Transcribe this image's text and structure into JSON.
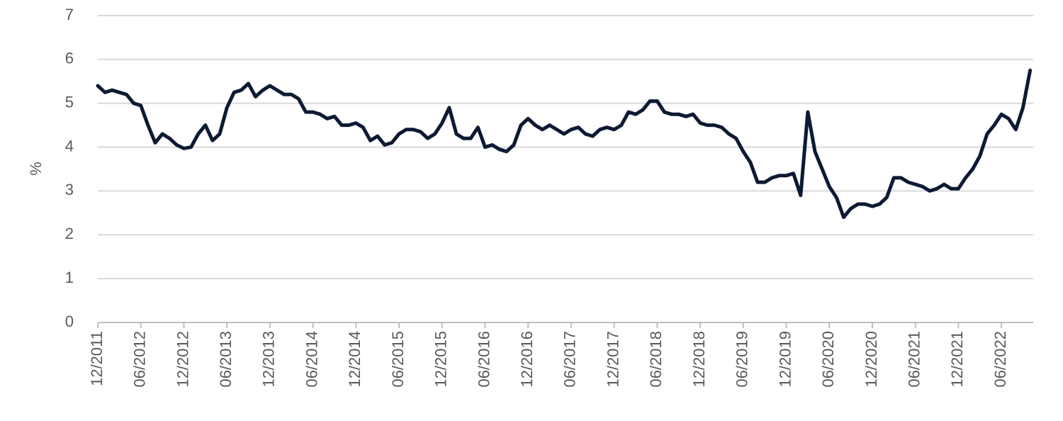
{
  "chart_data": {
    "type": "line",
    "y_label": "%",
    "color": "#0d1a33",
    "grid": true,
    "ylim": [
      0,
      7
    ],
    "yticks": [
      0,
      1,
      2,
      3,
      4,
      5,
      6,
      7
    ],
    "categories": [
      "12/2011",
      null,
      null,
      null,
      null,
      null,
      "06/2012",
      null,
      null,
      null,
      null,
      null,
      "12/2012",
      null,
      null,
      null,
      null,
      null,
      "06/2013",
      null,
      null,
      null,
      null,
      null,
      "12/2013",
      null,
      null,
      null,
      null,
      null,
      "06/2014",
      null,
      null,
      null,
      null,
      null,
      "12/2014",
      null,
      null,
      null,
      null,
      null,
      "06/2015",
      null,
      null,
      null,
      null,
      null,
      "12/2015",
      null,
      null,
      null,
      null,
      null,
      "06/2016",
      null,
      null,
      null,
      null,
      null,
      "12/2016",
      null,
      null,
      null,
      null,
      null,
      "06/2017",
      null,
      null,
      null,
      null,
      null,
      "12/2017",
      null,
      null,
      null,
      null,
      null,
      "06/2018",
      null,
      null,
      null,
      null,
      null,
      "12/2018",
      null,
      null,
      null,
      null,
      null,
      "06/2019",
      null,
      null,
      null,
      null,
      null,
      "12/2019",
      null,
      null,
      null,
      null,
      null,
      "06/2020",
      null,
      null,
      null,
      null,
      null,
      "12/2020",
      null,
      null,
      null,
      null,
      null,
      "06/2021",
      null,
      null,
      null,
      null,
      null,
      "12/2021",
      null,
      null,
      null,
      null,
      null,
      "06/2022",
      null,
      null,
      null,
      null
    ],
    "values": [
      5.4,
      5.25,
      5.3,
      5.25,
      5.2,
      5.0,
      4.95,
      4.5,
      4.1,
      4.3,
      4.2,
      4.05,
      3.97,
      4.0,
      4.3,
      4.5,
      4.15,
      4.3,
      4.9,
      5.25,
      5.3,
      5.45,
      5.15,
      5.3,
      5.4,
      5.3,
      5.2,
      5.2,
      5.1,
      4.8,
      4.8,
      4.75,
      4.65,
      4.7,
      4.5,
      4.5,
      4.55,
      4.45,
      4.15,
      4.25,
      4.05,
      4.1,
      4.3,
      4.4,
      4.4,
      4.35,
      4.2,
      4.3,
      4.55,
      4.9,
      4.3,
      4.2,
      4.2,
      4.45,
      4.0,
      4.05,
      3.95,
      3.9,
      4.05,
      4.5,
      4.65,
      4.5,
      4.4,
      4.5,
      4.4,
      4.3,
      4.4,
      4.45,
      4.3,
      4.25,
      4.4,
      4.45,
      4.4,
      4.5,
      4.8,
      4.75,
      4.85,
      5.05,
      5.05,
      4.8,
      4.75,
      4.75,
      4.7,
      4.75,
      4.55,
      4.5,
      4.5,
      4.45,
      4.3,
      4.2,
      3.9,
      3.65,
      3.2,
      3.2,
      3.3,
      3.35,
      3.35,
      3.4,
      2.9,
      4.8,
      3.9,
      3.5,
      3.1,
      2.85,
      2.4,
      2.6,
      2.7,
      2.7,
      2.65,
      2.7,
      2.85,
      3.3,
      3.3,
      3.2,
      3.15,
      3.1,
      3.0,
      3.05,
      3.15,
      3.05,
      3.05,
      3.3,
      3.5,
      3.8,
      4.3,
      4.5,
      4.75,
      4.65,
      4.4,
      4.9,
      5.75
    ]
  }
}
